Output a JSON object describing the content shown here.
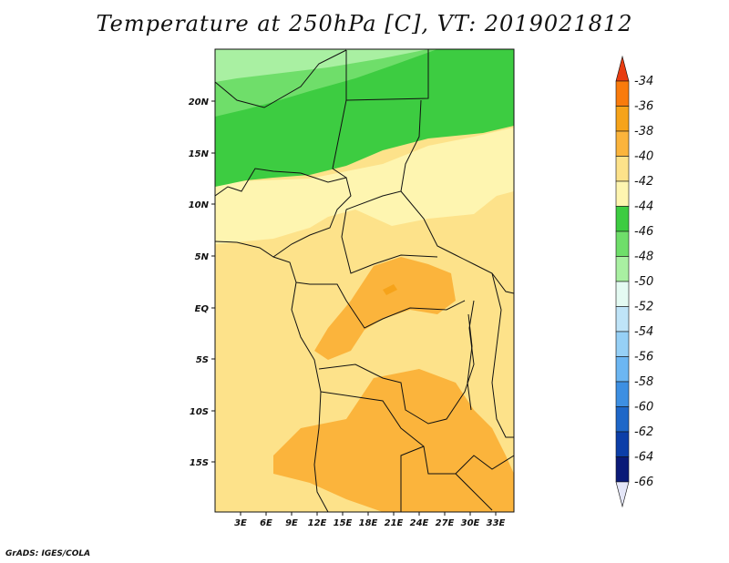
{
  "title": "Temperature at 250hPa [C], VT: 2019021812",
  "credit": "GrADS: IGES/COLA",
  "map": {
    "lon_ticks": [
      "3E",
      "6E",
      "9E",
      "12E",
      "15E",
      "18E",
      "21E",
      "24E",
      "27E",
      "30E",
      "33E"
    ],
    "lat_ticks": [
      "20N",
      "15N",
      "10N",
      "5N",
      "EQ",
      "5S",
      "10S",
      "15S"
    ],
    "lon_range": [
      0,
      35
    ],
    "lat_range": [
      -20,
      25
    ],
    "fill_colors": {
      "c36": "#f6a31a",
      "c38": "#fbb43c",
      "c40": "#fde28a",
      "c42": "#fef5b0",
      "c44": "#3dcc41",
      "c46": "#6fde6a",
      "c48": "#a9f0a2"
    }
  },
  "colorbar": {
    "labels": [
      "-34",
      "-36",
      "-38",
      "-40",
      "-42",
      "-44",
      "-46",
      "-48",
      "-50",
      "-52",
      "-54",
      "-56",
      "-58",
      "-60",
      "-62",
      "-64",
      "-66"
    ],
    "colors": [
      "#e83c10",
      "#f97b0c",
      "#f6a31a",
      "#fbb43c",
      "#fde28a",
      "#fef5b0",
      "#3dcc41",
      "#6fde6a",
      "#a9f0a2",
      "#e4faf2",
      "#bfe4f8",
      "#96d0f6",
      "#6cb6f2",
      "#3d8fe2",
      "#1e67c8",
      "#0c3ea8",
      "#0a1a78",
      "#e4e6f8"
    ]
  }
}
